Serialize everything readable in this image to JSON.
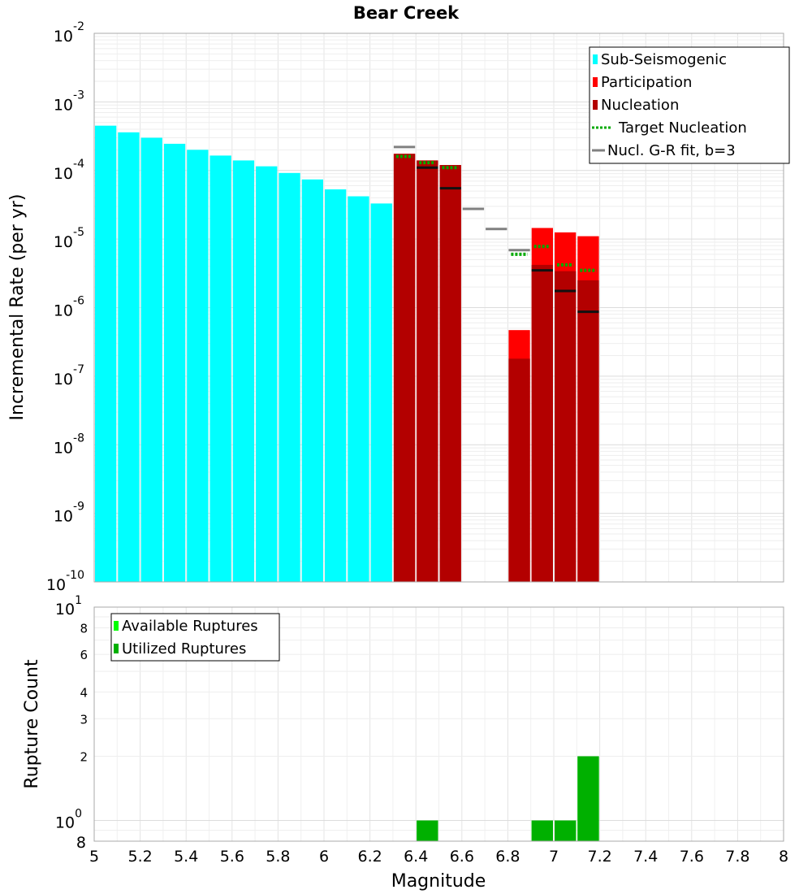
{
  "chart_data": [
    {
      "type": "bar",
      "title": "Bear Creek",
      "xlabel": "",
      "ylabel": "Incremental Rate (per yr)",
      "yscale": "log",
      "xlim": [
        5,
        8
      ],
      "ylim": [
        1e-10,
        0.01
      ],
      "bin_width": 0.1,
      "ytick_labels": [
        {
          "base": "10",
          "exp": "-2"
        },
        {
          "base": "10",
          "exp": "-3"
        },
        {
          "base": "10",
          "exp": "-4"
        },
        {
          "base": "10",
          "exp": "-5"
        },
        {
          "base": "10",
          "exp": "-6"
        },
        {
          "base": "10",
          "exp": "-7"
        },
        {
          "base": "10",
          "exp": "-8"
        },
        {
          "base": "10",
          "exp": "-9"
        },
        {
          "base": "10",
          "exp": "-10"
        }
      ],
      "legend": {
        "location": "top-right",
        "entries": [
          "Sub-Seismogenic",
          "Participation",
          "Nucleation",
          "Target Nucleation",
          "Nucl. G-R fit, b=3"
        ]
      },
      "series": [
        {
          "name": "Sub-Seismogenic",
          "kind": "bar",
          "color": "#00ffff",
          "x": [
            5.05,
            5.15,
            5.25,
            5.35,
            5.45,
            5.55,
            5.65,
            5.75,
            5.85,
            5.95,
            6.05,
            6.15,
            6.25
          ],
          "values": [
            0.00045,
            0.00036,
            0.0003,
            0.000245,
            0.0002,
            0.000165,
            0.00014,
            0.000115,
            9.2e-05,
            7.4e-05,
            5.3e-05,
            4.2e-05,
            3.3e-05
          ]
        },
        {
          "name": "Participation",
          "kind": "bar",
          "color": "#ff0000",
          "x": [
            6.35,
            6.45,
            6.55,
            6.85,
            6.95,
            7.05,
            7.15
          ],
          "values": [
            0.000175,
            0.00014,
            0.00012,
            4.7e-07,
            1.45e-05,
            1.25e-05,
            1.1e-05
          ]
        },
        {
          "name": "Nucleation",
          "kind": "bar",
          "color": "#b30000",
          "x": [
            6.35,
            6.45,
            6.55,
            6.85,
            6.95,
            7.05,
            7.15
          ],
          "values": [
            0.000175,
            0.00014,
            0.00012,
            1.8e-07,
            4.2e-06,
            3.4e-06,
            2.5e-06
          ]
        },
        {
          "name": "Target Nucleation",
          "kind": "dash",
          "color": "#00aa00",
          "x": [
            6.35,
            6.45,
            6.55,
            6.85,
            6.95,
            7.05,
            7.15
          ],
          "values": [
            0.00016,
            0.00013,
            0.00011,
            6e-06,
            7.8e-06,
            4.2e-06,
            3.5e-06
          ]
        },
        {
          "name": "Nucl. G-R fit, b=3",
          "kind": "dash",
          "color": "#808080",
          "x": [
            6.35,
            6.45,
            6.55,
            6.65,
            6.75,
            6.85,
            6.95,
            7.05,
            7.15
          ],
          "values": [
            0.00022,
            0.00011,
            5.5e-05,
            2.75e-05,
            1.4e-05,
            6.9e-06,
            3.5e-06,
            1.75e-06,
            8.7e-07
          ]
        }
      ]
    },
    {
      "type": "bar",
      "title": "",
      "xlabel": "Magnitude",
      "ylabel": "Rupture Count",
      "yscale": "log",
      "xlim": [
        5,
        8
      ],
      "ylim": [
        0.8,
        10
      ],
      "bin_width": 0.1,
      "xtick_labels": [
        "5",
        "5.2",
        "5.4",
        "5.6",
        "5.8",
        "6",
        "6.2",
        "6.4",
        "6.6",
        "6.8",
        "7",
        "7.2",
        "7.4",
        "7.6",
        "7.8",
        "8"
      ],
      "major_ytick_labels": [
        {
          "base": "10",
          "exp": "1"
        },
        {
          "base": "10",
          "exp": "0"
        }
      ],
      "minor_ytick_labels": [
        "8",
        "6",
        "4",
        "3",
        "2",
        "8"
      ],
      "legend": {
        "location": "top-left",
        "entries": [
          "Available Ruptures",
          "Utilized Ruptures"
        ]
      },
      "series": [
        {
          "name": "Available Ruptures",
          "kind": "bar",
          "color": "#00ff00",
          "x": [
            6.45,
            6.95,
            7.05,
            7.15
          ],
          "values": [
            1,
            1,
            1,
            2
          ]
        },
        {
          "name": "Utilized Ruptures",
          "kind": "bar",
          "color": "#00b000",
          "x": [
            6.45,
            6.95,
            7.05,
            7.15
          ],
          "values": [
            1,
            1,
            1,
            2
          ]
        }
      ]
    }
  ]
}
